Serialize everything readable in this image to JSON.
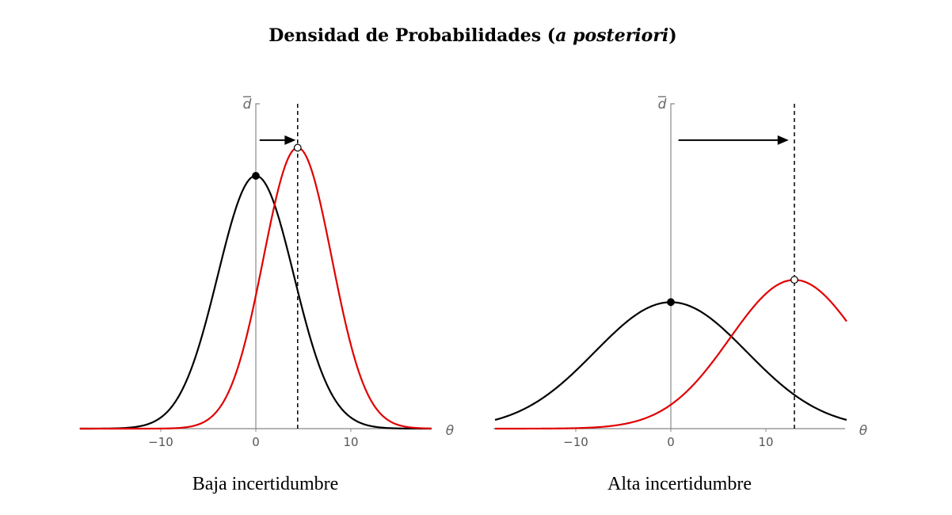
{
  "title": {
    "text_main": "Densidad de Probabilidades (",
    "text_italic": "a posteriori",
    "text_end": ")"
  },
  "chart_data": [
    {
      "type": "line",
      "caption": "Baja incertidumbre",
      "xlabel": "θ",
      "ylabel": "d̄",
      "xlim": [
        -19,
        19
      ],
      "ylim": [
        0,
        0.12
      ],
      "x_ticks": [
        -10,
        0,
        10
      ],
      "x_tick_labels": [
        "−10",
        "0",
        "10"
      ],
      "grid": false,
      "series": [
        {
          "color": "#000000",
          "mean": 0,
          "sd": 4.0,
          "x_range": [
            -18.5,
            18.5
          ]
        },
        {
          "color": "#e00000",
          "mean": 4.4,
          "sd": 3.6,
          "x_range": [
            -18.5,
            18.5
          ]
        }
      ],
      "markers": [
        {
          "x": 0,
          "y": 0.0997,
          "style": "filled",
          "color": "#000000"
        },
        {
          "x": 4.4,
          "y": 0.1108,
          "style": "open",
          "color": "#000000"
        }
      ],
      "vline_x": 4.4,
      "arrow": {
        "x_from": 0.4,
        "x_to": 4.2,
        "y": 0.1138
      }
    },
    {
      "type": "line",
      "caption": "Alta incertidumbre",
      "xlabel": "θ",
      "ylabel": "d̄",
      "xlim": [
        -19,
        21
      ],
      "ylim": [
        0,
        0.12
      ],
      "x_ticks": [
        -10,
        0,
        10
      ],
      "x_tick_labels": [
        "−10",
        "0",
        "10"
      ],
      "grid": false,
      "series": [
        {
          "color": "#000000",
          "mean": 0,
          "sd": 8.0,
          "x_range": [
            -18.5,
            18.5
          ]
        },
        {
          "color": "#e00000",
          "mean": 13,
          "sd": 6.8,
          "x_range": [
            -18.5,
            18.5
          ]
        }
      ],
      "markers": [
        {
          "x": 0,
          "y": 0.0499,
          "style": "filled",
          "color": "#000000"
        },
        {
          "x": 13,
          "y": 0.0587,
          "style": "open",
          "color": "#000000"
        }
      ],
      "vline_x": 13,
      "arrow": {
        "x_from": 0.8,
        "x_to": 12.4,
        "y": 0.1138
      }
    }
  ]
}
